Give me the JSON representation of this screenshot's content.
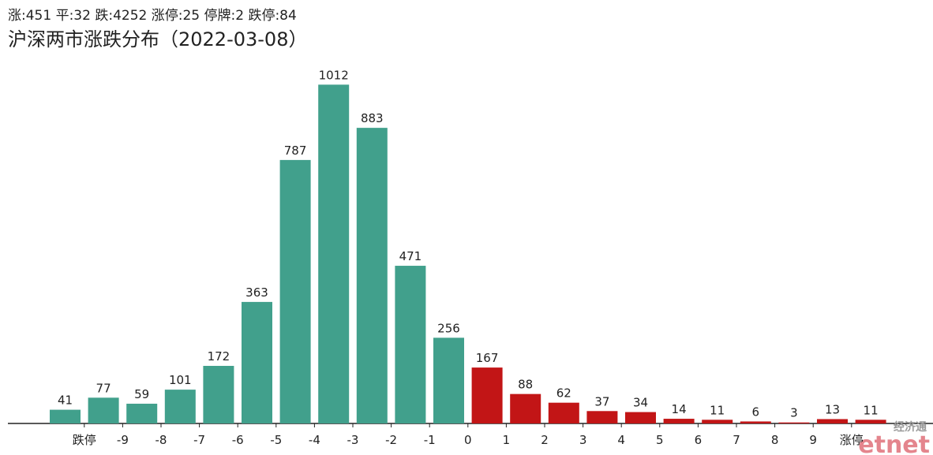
{
  "chart_data": {
    "type": "bar",
    "subtitle": "涨:451 平:32 跌:4252 涨停:25 停牌:2 跌停:84",
    "title": "沪深两市涨跌分布（2022-03-08）",
    "values": [
      41,
      77,
      59,
      101,
      172,
      363,
      787,
      1012,
      883,
      471,
      256,
      167,
      88,
      62,
      37,
      34,
      14,
      11,
      6,
      3,
      13,
      11
    ],
    "colors": [
      "#41a08c",
      "#41a08c",
      "#41a08c",
      "#41a08c",
      "#41a08c",
      "#41a08c",
      "#41a08c",
      "#41a08c",
      "#41a08c",
      "#41a08c",
      "#41a08c",
      "#c21516",
      "#c21516",
      "#c21516",
      "#c21516",
      "#c21516",
      "#c21516",
      "#c21516",
      "#c21516",
      "#c21516",
      "#c21516",
      "#c21516"
    ],
    "x_tick_labels": [
      "跌停",
      "-9",
      "-8",
      "-7",
      "-6",
      "-5",
      "-4",
      "-3",
      "-2",
      "-1",
      "0",
      "1",
      "2",
      "3",
      "4",
      "5",
      "6",
      "7",
      "8",
      "9",
      "涨停"
    ],
    "ylim": [
      0,
      1100
    ]
  },
  "watermark": {
    "text": "经济通",
    "logo": "etnet"
  }
}
